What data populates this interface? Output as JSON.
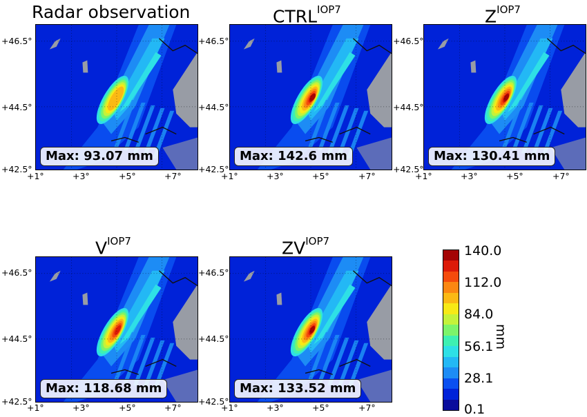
{
  "figure": {
    "panels": [
      {
        "id": "radar",
        "title": "Radar observation",
        "sup": "",
        "max_label": "Max: 93.07 mm",
        "max_value": 93.07
      },
      {
        "id": "ctrl",
        "title": "CTRL",
        "sup": "IOP7",
        "max_label": "Max: 142.6 mm",
        "max_value": 142.6
      },
      {
        "id": "z",
        "title": "Z",
        "sup": "IOP7",
        "max_label": "Max: 130.41 mm",
        "max_value": 130.41
      },
      {
        "id": "v",
        "title": "V",
        "sup": "IOP7",
        "max_label": "Max: 118.68 mm",
        "max_value": 118.68
      },
      {
        "id": "zv",
        "title": "ZV",
        "sup": "IOP7",
        "max_label": "Max: 133.52 mm",
        "max_value": 133.52
      }
    ],
    "lat_ticks": [
      "+46.5°",
      "+44.5°",
      "+42.5°"
    ],
    "lon_ticks": [
      "+1°",
      "+3°",
      "+5°",
      "+7°"
    ],
    "colorbar": {
      "tick_labels": [
        "140.0",
        "112.0",
        "84.0",
        "56.1",
        "28.1",
        "0.1"
      ],
      "unit": "mm",
      "colors": [
        "#0a0d9c",
        "#0022d8",
        "#0a4ff0",
        "#1d8cf5",
        "#23b8f5",
        "#2ee0e6",
        "#3ef0b2",
        "#7cf46a",
        "#c4f23a",
        "#f7e916",
        "#fbb914",
        "#fb8712",
        "#f44b0c",
        "#dc1a08",
        "#a40404"
      ]
    }
  },
  "chart_data": [
    {
      "type": "heatmap",
      "title": "Radar observation",
      "annotation": "Max: 93.07 mm",
      "max": 93.07,
      "x_ticks": [
        "+1°",
        "+3°",
        "+5°",
        "+7°"
      ],
      "y_ticks": [
        "+46.5°",
        "+44.5°",
        "+42.5°"
      ],
      "xlim": [
        1,
        8.5
      ],
      "ylim": [
        42.5,
        47.4
      ],
      "grid": true,
      "unit": "mm"
    },
    {
      "type": "heatmap",
      "title": "CTRL IOP7",
      "annotation": "Max: 142.6 mm",
      "max": 142.6,
      "x_ticks": [
        "+1°",
        "+3°",
        "+5°",
        "+7°"
      ],
      "y_ticks": [
        "+46.5°",
        "+44.5°",
        "+42.5°"
      ],
      "xlim": [
        1,
        8.5
      ],
      "ylim": [
        42.5,
        47.4
      ],
      "grid": true,
      "unit": "mm"
    },
    {
      "type": "heatmap",
      "title": "Z IOP7",
      "annotation": "Max: 130.41 mm",
      "max": 130.41,
      "x_ticks": [
        "+1°",
        "+3°",
        "+5°",
        "+7°"
      ],
      "y_ticks": [
        "+46.5°",
        "+44.5°",
        "+42.5°"
      ],
      "xlim": [
        1,
        8.5
      ],
      "ylim": [
        42.5,
        47.4
      ],
      "grid": true,
      "unit": "mm"
    },
    {
      "type": "heatmap",
      "title": "V IOP7",
      "annotation": "Max: 118.68 mm",
      "max": 118.68,
      "x_ticks": [
        "+1°",
        "+3°",
        "+5°",
        "+7°"
      ],
      "y_ticks": [
        "+46.5°",
        "+44.5°",
        "+42.5°"
      ],
      "xlim": [
        1,
        8.5
      ],
      "ylim": [
        42.5,
        47.4
      ],
      "grid": true,
      "unit": "mm"
    },
    {
      "type": "heatmap",
      "title": "ZV IOP7",
      "annotation": "Max: 133.52 mm",
      "max": 133.52,
      "x_ticks": [
        "+1°",
        "+3°",
        "+5°",
        "+7°"
      ],
      "y_ticks": [
        "+46.5°",
        "+44.5°",
        "+42.5°"
      ],
      "xlim": [
        1,
        8.5
      ],
      "ylim": [
        42.5,
        47.4
      ],
      "grid": true,
      "unit": "mm"
    },
    {
      "type": "colorbar",
      "ticks": [
        140.0,
        112.0,
        84.0,
        56.1,
        28.1,
        0.1
      ],
      "range": [
        0.1,
        140.0
      ],
      "unit": "mm"
    }
  ]
}
